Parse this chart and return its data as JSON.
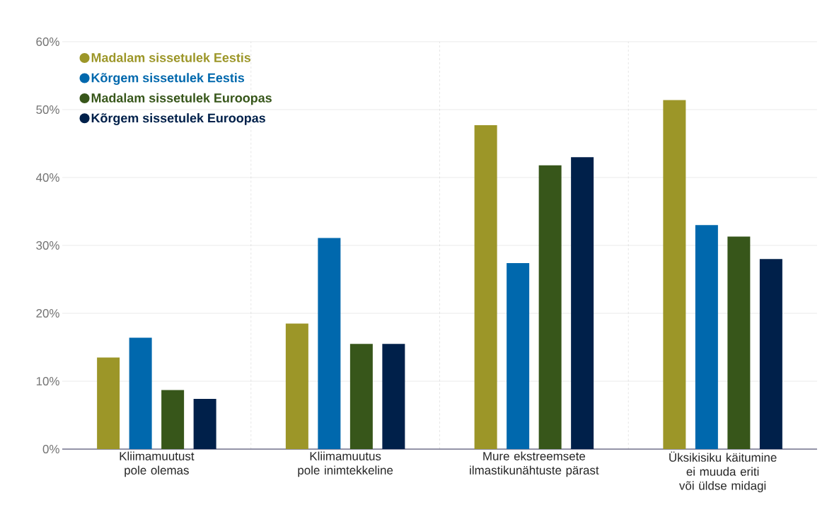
{
  "chart_data": {
    "type": "bar",
    "categories": [
      "Kliimamuutust pole olemas",
      "Kliimamuutus pole inimtekkeline",
      "Mure ekstreemsete ilmastikunähtuste pärast",
      "Üksikisiku käitumine ei muuda eriti või üldse midagi"
    ],
    "series": [
      {
        "name": "Madalam sissetulek Eestis",
        "color": "#9c9628",
        "values": [
          13.5,
          18.5,
          47.7,
          51.4
        ]
      },
      {
        "name": "Kõrgem sissetulek Eestis",
        "color": "#0068ad",
        "values": [
          16.4,
          31.1,
          27.4,
          33.0
        ]
      },
      {
        "name": "Madalam sissetulek Euroopas",
        "color": "#37561a",
        "values": [
          8.7,
          15.5,
          41.8,
          31.3
        ]
      },
      {
        "name": "Kõrgem sissetulek Euroopas",
        "color": "#00204a",
        "values": [
          7.4,
          15.5,
          43.0,
          28.0
        ]
      }
    ],
    "ylim": [
      0,
      60
    ],
    "yticks": [
      {
        "value": 0,
        "label": "0%"
      },
      {
        "value": 10,
        "label": "10%"
      },
      {
        "value": 20,
        "label": "20%"
      },
      {
        "value": 30,
        "label": "30%"
      },
      {
        "value": 40,
        "label": "40%"
      },
      {
        "value": 50,
        "label": "50%"
      },
      {
        "value": 60,
        "label": "60%"
      }
    ],
    "grid": true,
    "legend": "top left"
  }
}
